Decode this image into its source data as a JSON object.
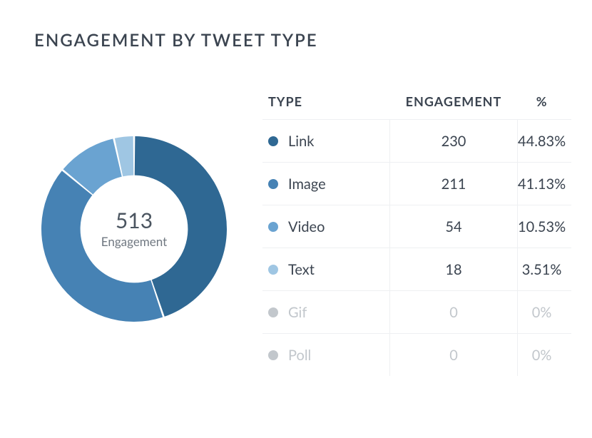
{
  "card": {
    "title": "ENGAGEMENT BY TWEET TYPE"
  },
  "chart": {
    "type": "donut",
    "total_value": "513",
    "total_caption": "Engagement",
    "background_color": "#ffffff",
    "inner_radius_ratio": 0.58,
    "gap_deg": 1.2,
    "slices": [
      {
        "label": "Link",
        "value": 230,
        "percent": 44.83,
        "color": "#2f6893"
      },
      {
        "label": "Image",
        "value": 211,
        "percent": 41.13,
        "color": "#4682b4"
      },
      {
        "label": "Video",
        "value": 54,
        "percent": 10.53,
        "color": "#6aa3d1"
      },
      {
        "label": "Text",
        "value": 18,
        "percent": 3.51,
        "color": "#9fc6e3"
      }
    ]
  },
  "table": {
    "headers": {
      "type": "TYPE",
      "engagement": "ENGAGEMENT",
      "percent": "%"
    },
    "zero_color": "#c2c7cc",
    "rows": [
      {
        "label": "Link",
        "value": "230",
        "percent": "44.83%",
        "dot_color": "#2f6893",
        "zero": false
      },
      {
        "label": "Image",
        "value": "211",
        "percent": "41.13%",
        "dot_color": "#4682b4",
        "zero": false
      },
      {
        "label": "Video",
        "value": "54",
        "percent": "10.53%",
        "dot_color": "#6aa3d1",
        "zero": false
      },
      {
        "label": "Text",
        "value": "18",
        "percent": "3.51%",
        "dot_color": "#9fc6e3",
        "zero": false
      },
      {
        "label": "Gif",
        "value": "0",
        "percent": "0%",
        "dot_color": "#c2c7cc",
        "zero": true
      },
      {
        "label": "Poll",
        "value": "0",
        "percent": "0%",
        "dot_color": "#c2c7cc",
        "zero": true
      }
    ]
  }
}
